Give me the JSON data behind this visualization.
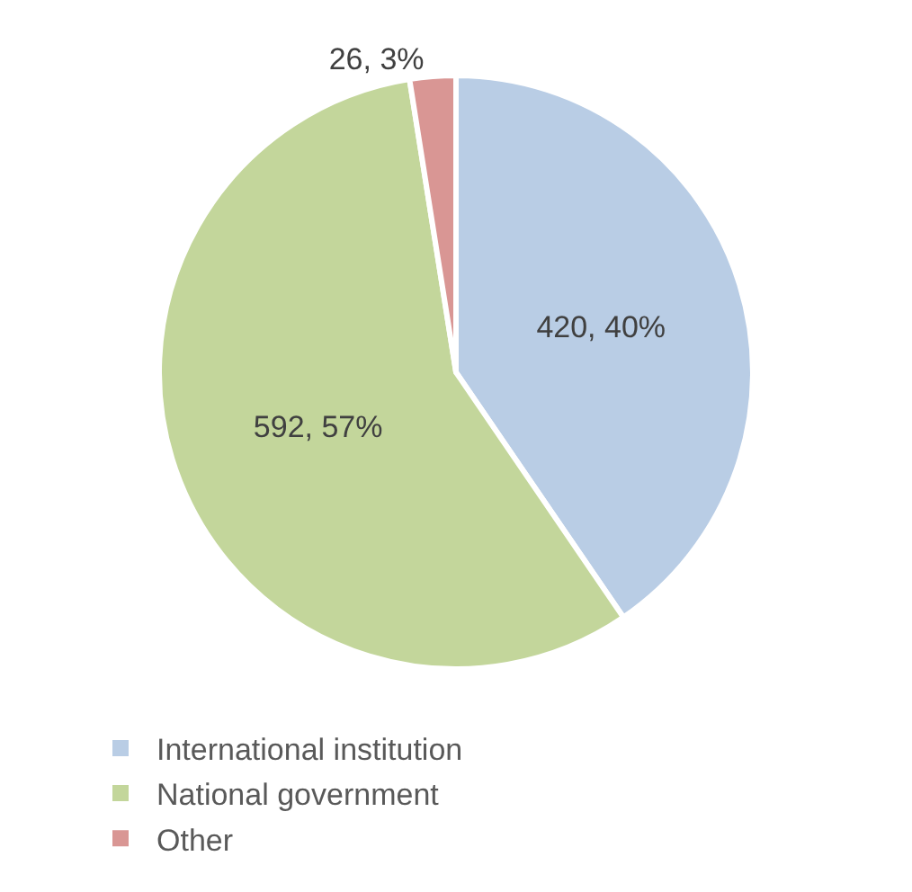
{
  "chart_data": {
    "type": "pie",
    "categories": [
      "International institution",
      "National government",
      "Other"
    ],
    "values": [
      420,
      592,
      26
    ],
    "colors": [
      "#b9cde5",
      "#c3d69b",
      "#d99694"
    ],
    "value_labels": [
      "420, 40%",
      "592, 57%",
      "26, 3%"
    ],
    "legend": "bottom"
  }
}
